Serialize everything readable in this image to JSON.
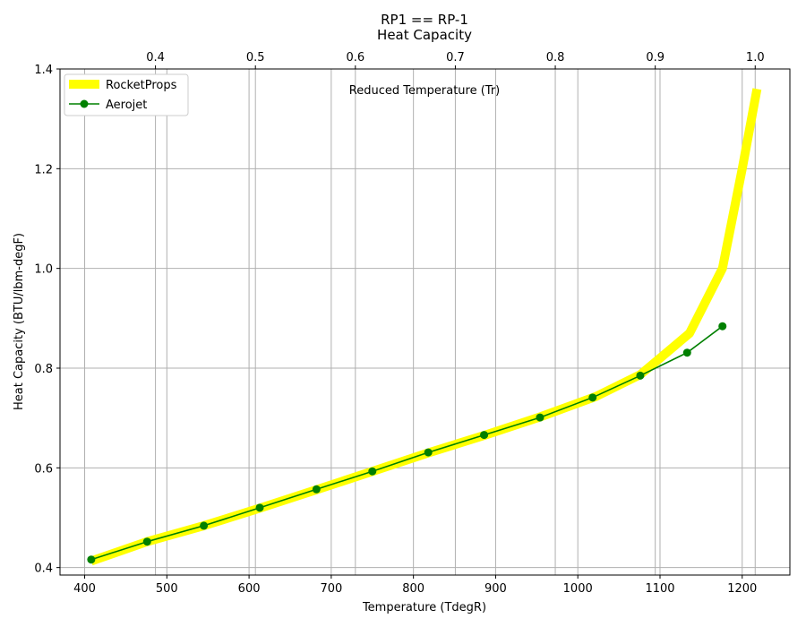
{
  "chart_data": {
    "type": "line",
    "title_lines": [
      "RP1 == RP-1",
      "Heat Capacity"
    ],
    "xlabel": "Temperature (TdegR)",
    "ylabel": "Heat Capacity (BTU/lbm-degF)",
    "x2label": "Reduced Temperature (Tr)",
    "xlim": [
      370,
      1258
    ],
    "ylim": [
      0.385,
      1.4
    ],
    "x2lim": [
      0.3045,
      1.0347
    ],
    "xticks": [
      400,
      500,
      600,
      700,
      800,
      900,
      1000,
      1100,
      1200
    ],
    "xtick_labels": [
      "400",
      "500",
      "600",
      "700",
      "800",
      "900",
      "1000",
      "1100",
      "1200"
    ],
    "yticks": [
      0.4,
      0.6,
      0.8,
      1.0,
      1.2,
      1.4
    ],
    "ytick_labels": [
      "0.4",
      "0.6",
      "0.8",
      "1.0",
      "1.2",
      "1.4"
    ],
    "x2ticks": [
      0.4,
      0.5,
      0.6,
      0.7,
      0.8,
      0.9,
      1.0
    ],
    "x2tick_labels": [
      "0.4",
      "0.5",
      "0.6",
      "0.7",
      "0.8",
      "0.9",
      "1.0"
    ],
    "grid": true,
    "legend_position": "top-left",
    "series": [
      {
        "name": "RocketProps",
        "color": "#ffff00",
        "marker": "none",
        "x": [
          408,
          476,
          545,
          613,
          682,
          750,
          818,
          886,
          954,
          1022,
          1076,
          1100,
          1136,
          1176,
          1200,
          1218
        ],
        "y": [
          0.413,
          0.452,
          0.484,
          0.519,
          0.556,
          0.593,
          0.63,
          0.665,
          0.702,
          0.743,
          0.787,
          0.82,
          0.87,
          1.0,
          1.2,
          1.36
        ]
      },
      {
        "name": "Aerojet",
        "color": "#008000",
        "marker": "circle",
        "x": [
          408,
          476,
          545,
          613,
          682,
          750,
          818,
          886,
          954,
          1018,
          1076,
          1133,
          1176
        ],
        "y": [
          0.416,
          0.452,
          0.484,
          0.52,
          0.557,
          0.593,
          0.631,
          0.666,
          0.701,
          0.741,
          0.785,
          0.831,
          0.884
        ]
      }
    ]
  }
}
